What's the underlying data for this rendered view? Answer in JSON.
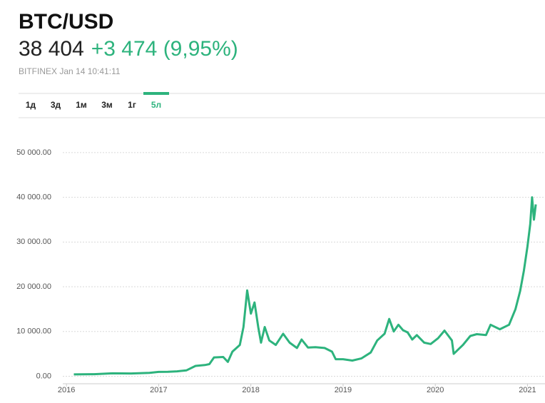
{
  "header": {
    "title": "BTC/USD",
    "price": "38 404",
    "change": "+3 474 (9,95%)",
    "source": "BITFINEX Jan 14 10:41:11"
  },
  "tabs": {
    "items": [
      "1д",
      "3д",
      "1м",
      "3м",
      "1г",
      "5л"
    ],
    "active": 5
  },
  "chart_data": {
    "type": "line",
    "x": [
      2016.08,
      2016.3,
      2016.5,
      2016.7,
      2016.9,
      2017.0,
      2017.1,
      2017.2,
      2017.3,
      2017.4,
      2017.5,
      2017.55,
      2017.6,
      2017.7,
      2017.75,
      2017.8,
      2017.88,
      2017.92,
      2017.96,
      2018.0,
      2018.04,
      2018.08,
      2018.11,
      2018.15,
      2018.2,
      2018.27,
      2018.35,
      2018.42,
      2018.5,
      2018.55,
      2018.62,
      2018.7,
      2018.8,
      2018.88,
      2018.92,
      2019.0,
      2019.1,
      2019.2,
      2019.3,
      2019.37,
      2019.45,
      2019.5,
      2019.55,
      2019.6,
      2019.65,
      2019.7,
      2019.75,
      2019.8,
      2019.88,
      2019.95,
      2020.03,
      2020.1,
      2020.18,
      2020.2,
      2020.3,
      2020.38,
      2020.45,
      2020.55,
      2020.6,
      2020.7,
      2020.8,
      2020.87,
      2020.92,
      2020.96,
      2021.0,
      2021.03,
      2021.05,
      2021.07,
      2021.09
    ],
    "series": [
      {
        "name": "BTC/USD",
        "color": "#2db37d",
        "values": [
          400,
          450,
          650,
          610,
          740,
          960,
          1000,
          1100,
          1300,
          2300,
          2500,
          2700,
          4200,
          4300,
          3200,
          5500,
          7000,
          11000,
          19200,
          14000,
          16500,
          11000,
          7500,
          11000,
          8000,
          7000,
          9500,
          7500,
          6300,
          8200,
          6400,
          6500,
          6300,
          5500,
          3800,
          3800,
          3500,
          4000,
          5300,
          8000,
          9500,
          12800,
          10000,
          11500,
          10300,
          9800,
          8200,
          9200,
          7500,
          7200,
          8500,
          10200,
          8000,
          5000,
          7000,
          9000,
          9400,
          9200,
          11500,
          10500,
          11500,
          15000,
          19000,
          23500,
          29000,
          34000,
          40000,
          35000,
          38400
        ]
      }
    ],
    "xlim": [
      2015.96,
      2021.19
    ],
    "xticks": [
      2016,
      2017,
      2018,
      2019,
      2020,
      2021
    ],
    "ylim": [
      -2000,
      57000
    ],
    "yticks": [
      {
        "value": 0,
        "label": "0.00"
      },
      {
        "value": 10000,
        "label": "10 000.00"
      },
      {
        "value": 20000,
        "label": "20 000.00"
      },
      {
        "value": 30000,
        "label": "30 000.00"
      },
      {
        "value": 40000,
        "label": "40 000.00"
      },
      {
        "value": 50000,
        "label": "50 000.00"
      }
    ],
    "grid": true
  }
}
